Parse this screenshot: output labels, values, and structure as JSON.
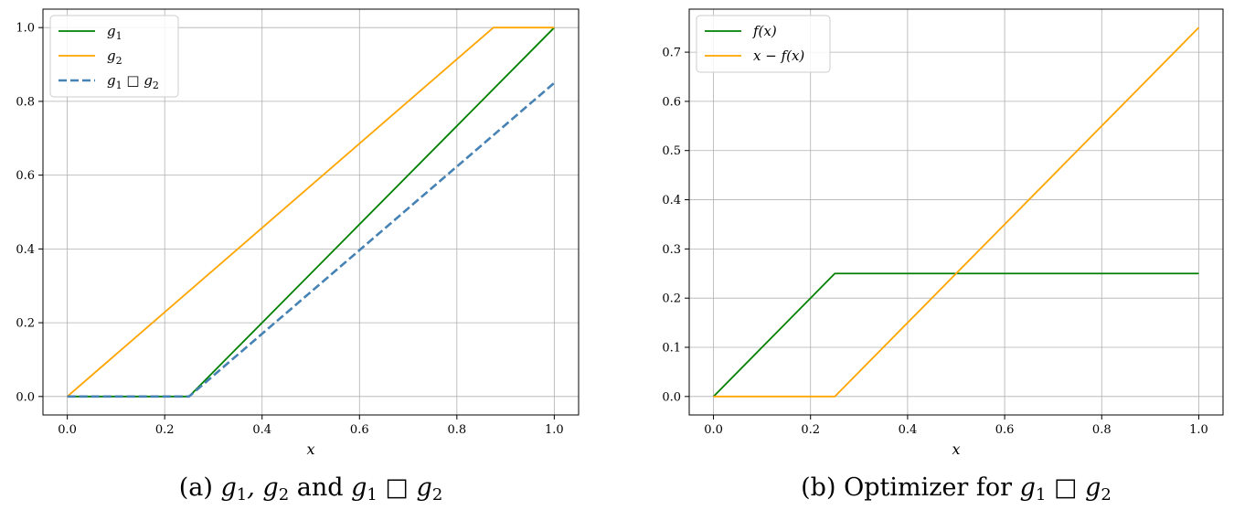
{
  "chart_data": [
    {
      "type": "line",
      "panel": "a",
      "caption_prefix": "(a) ",
      "caption_math_1": "g",
      "caption_sub_1": "1",
      "caption_math_2": ", g",
      "caption_sub_2": "2",
      "caption_text_mid": " and ",
      "caption_math_3": "g",
      "caption_sub_3": "1",
      "caption_box": " □ ",
      "caption_math_4": "g",
      "caption_sub_4": "2",
      "xlabel": "x",
      "ylabel": "",
      "xlim": [
        -0.05,
        1.05
      ],
      "ylim": [
        -0.05,
        1.05
      ],
      "xticks": [
        0.0,
        0.2,
        0.4,
        0.6,
        0.8,
        1.0
      ],
      "xtick_labels": [
        "0.0",
        "0.2",
        "0.4",
        "0.6",
        "0.8",
        "1.0"
      ],
      "yticks": [
        0.0,
        0.2,
        0.4,
        0.6,
        0.8,
        1.0
      ],
      "ytick_labels": [
        "0.0",
        "0.2",
        "0.4",
        "0.6",
        "0.8",
        "1.0"
      ],
      "grid": true,
      "legend_position": "upper-left",
      "series": [
        {
          "name": "g1",
          "label_base": "g",
          "label_sub": "1",
          "color": "#008000",
          "dash": "solid",
          "x": [
            0.0,
            0.25,
            1.0
          ],
          "y": [
            0.0,
            0.0,
            1.0
          ]
        },
        {
          "name": "g2",
          "label_base": "g",
          "label_sub": "2",
          "color": "#FFA500",
          "dash": "solid",
          "x": [
            0.0,
            0.875,
            1.0
          ],
          "y": [
            0.0,
            1.0,
            1.0
          ]
        },
        {
          "name": "g1 □ g2",
          "label_base": "g",
          "label_sub": "1",
          "label_mid": " □ g",
          "label_sub2": "2",
          "color": "#4682B4",
          "dash": "dashed",
          "x": [
            0.0,
            0.25,
            1.0
          ],
          "y": [
            0.0,
            0.0,
            0.85
          ]
        }
      ]
    },
    {
      "type": "line",
      "panel": "b",
      "caption_prefix": "(b) Optimizer for ",
      "caption_math_1": "g",
      "caption_sub_1": "1",
      "caption_box": " □ ",
      "caption_math_2": "g",
      "caption_sub_2": "2",
      "xlabel": "x",
      "ylabel": "",
      "xlim": [
        -0.05,
        1.05
      ],
      "ylim": [
        -0.0375,
        0.7875
      ],
      "xticks": [
        0.0,
        0.2,
        0.4,
        0.6,
        0.8,
        1.0
      ],
      "xtick_labels": [
        "0.0",
        "0.2",
        "0.4",
        "0.6",
        "0.8",
        "1.0"
      ],
      "yticks": [
        0.0,
        0.1,
        0.2,
        0.3,
        0.4,
        0.5,
        0.6,
        0.7
      ],
      "ytick_labels": [
        "0.0",
        "0.1",
        "0.2",
        "0.3",
        "0.4",
        "0.5",
        "0.6",
        "0.7"
      ],
      "grid": true,
      "legend_position": "upper-left",
      "series": [
        {
          "name": "f(x)",
          "label_base": "f(x)",
          "color": "#008000",
          "dash": "solid",
          "x": [
            0.0,
            0.25,
            1.0
          ],
          "y": [
            0.0,
            0.25,
            0.25
          ]
        },
        {
          "name": "x − f(x)",
          "label_base": "x − f(x)",
          "color": "#FFA500",
          "dash": "solid",
          "x": [
            0.0,
            0.25,
            1.0
          ],
          "y": [
            0.0,
            0.0,
            0.75
          ]
        }
      ]
    }
  ]
}
